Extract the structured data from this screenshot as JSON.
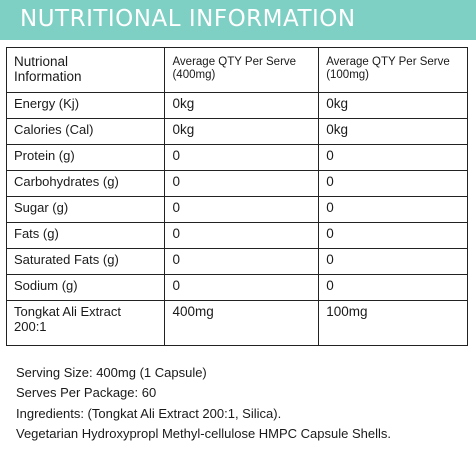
{
  "banner": {
    "title": "NUTRITIONAL INFORMATION",
    "color": "#7ecfc4"
  },
  "table": {
    "headers": [
      "Nutrional\nInformation",
      "Average QTY Per Serve\n(400mg)",
      "Average QTY Per Serve\n(100mg)"
    ],
    "rows": [
      [
        "Energy (Kj)",
        "0kg",
        "0kg"
      ],
      [
        "Calories (Cal)",
        "0kg",
        "0kg"
      ],
      [
        "Protein (g)",
        "0",
        "0"
      ],
      [
        "Carbohydrates (g)",
        "0",
        "0"
      ],
      [
        "Sugar (g)",
        "0",
        "0"
      ],
      [
        "Fats (g)",
        "0",
        "0"
      ],
      [
        "Saturated Fats (g)",
        "0",
        "0"
      ],
      [
        "Sodium (g)",
        "0",
        "0"
      ],
      [
        "Tongkat Ali Extract\n200:1",
        "400mg",
        "100mg"
      ]
    ]
  },
  "footer": {
    "serving_size": "Serving Size: 400mg (1 Capsule)",
    "serves_per_package": "Serves Per Package: 60",
    "ingredients": "Ingredients: (Tongkat Ali Extract 200:1, Silica).",
    "capsule": "Vegetarian Hydroxypropl Methyl-cellulose HMPC Capsule Shells."
  }
}
